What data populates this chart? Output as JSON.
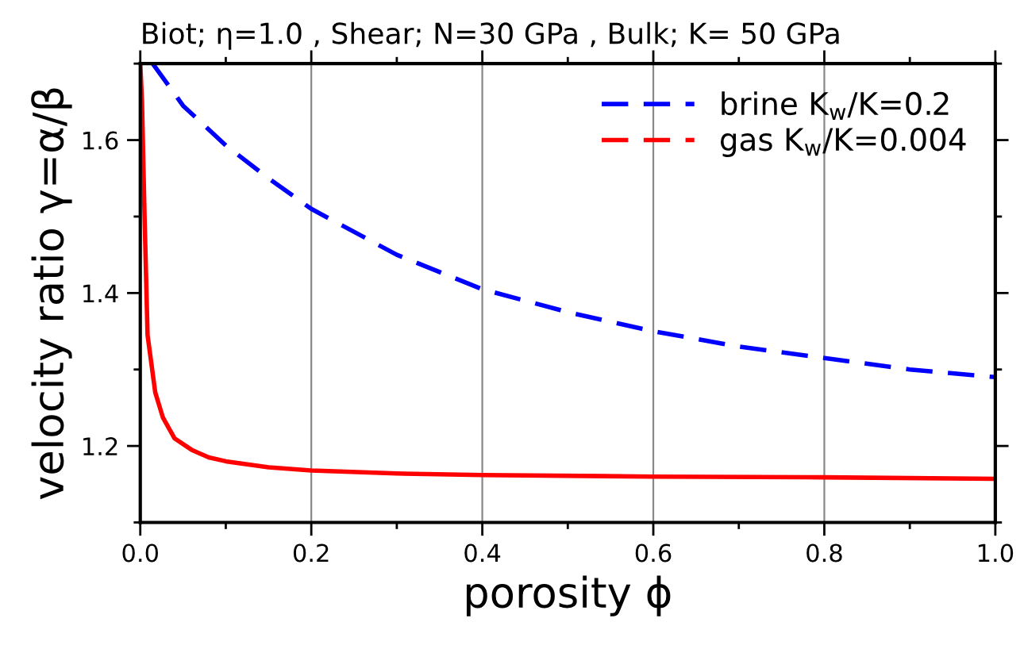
{
  "chart_data": {
    "type": "line",
    "title": "Biot; η=1.0 , Shear; N=30 GPa , Bulk; K= 50 GPa",
    "xlabel": "porosity ϕ",
    "ylabel": "velocity ratio γ=α/β",
    "xlim": [
      0,
      1
    ],
    "ylim": [
      1.1,
      1.7
    ],
    "xticks": [
      {
        "value": 0,
        "label": "0.0"
      },
      0.2,
      0.4,
      0.6,
      0.8,
      {
        "value": 1,
        "label": "1.0"
      }
    ],
    "yticks": [
      1.2,
      1.4,
      1.6
    ],
    "grid": "x",
    "legend": "top right",
    "series": [
      {
        "name": "brine K$_{w}$/K=0.2",
        "color": "#0000ff",
        "line_style": "dashed",
        "x": [
          0.0145,
          0.05,
          0.1,
          0.15,
          0.2,
          0.3,
          0.4,
          0.5,
          0.6,
          0.7,
          0.8,
          0.9,
          1.0
        ],
        "values": [
          1.7,
          1.645,
          1.593,
          1.55,
          1.51,
          1.45,
          1.405,
          1.375,
          1.35,
          1.33,
          1.315,
          1.3,
          1.29
        ]
      },
      {
        "name": "gas K$_{w}$/K=0.004",
        "color": "#ff0000",
        "line_style": "solid",
        "x": [
          0,
          0.002,
          0.005,
          0.0085,
          0.0175,
          0.0265,
          0.04,
          0.06,
          0.08,
          0.1,
          0.15,
          0.2,
          0.3,
          0.4,
          0.6,
          0.8,
          1.0
        ],
        "values": [
          1.7,
          1.65,
          1.5,
          1.345,
          1.27,
          1.237,
          1.21,
          1.195,
          1.185,
          1.18,
          1.172,
          1.168,
          1.164,
          1.162,
          1.16,
          1.159,
          1.157
        ]
      }
    ]
  }
}
